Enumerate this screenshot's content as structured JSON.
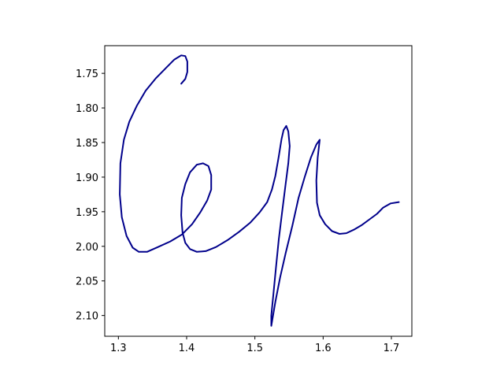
{
  "chart_data": {
    "type": "line",
    "title": "",
    "xlabel": "",
    "ylabel": "",
    "xlim": [
      1.28,
      1.73
    ],
    "ylim": [
      2.13,
      1.71
    ],
    "y_inverted": true,
    "grid": false,
    "legend": "none",
    "xticks": [
      1.3,
      1.4,
      1.5,
      1.6,
      1.7
    ],
    "xtick_labels": [
      "1.3",
      "1.4",
      "1.5",
      "1.6",
      "1.7"
    ],
    "yticks": [
      1.75,
      1.8,
      1.85,
      1.9,
      1.95,
      2.0,
      2.05,
      2.1
    ],
    "ytick_labels": [
      "1.75",
      "1.80",
      "1.85",
      "1.90",
      "1.95",
      "2.00",
      "2.05",
      "2.10"
    ],
    "series": [
      {
        "color": "#00008b",
        "x": [
          1.392,
          1.398,
          1.401,
          1.401,
          1.398,
          1.392,
          1.382,
          1.37,
          1.355,
          1.34,
          1.327,
          1.316,
          1.308,
          1.303,
          1.302,
          1.305,
          1.312,
          1.321,
          1.33,
          1.342,
          1.358,
          1.376,
          1.393,
          1.408,
          1.42,
          1.43,
          1.436,
          1.436,
          1.432,
          1.424,
          1.415,
          1.405,
          1.398,
          1.393,
          1.392,
          1.394,
          1.398,
          1.405,
          1.415,
          1.428,
          1.443,
          1.46,
          1.477,
          1.493,
          1.507,
          1.518,
          1.525,
          1.53,
          1.535,
          1.539,
          1.542,
          1.546,
          1.549,
          1.551,
          1.549,
          1.545,
          1.54,
          1.535,
          1.531,
          1.527,
          1.524,
          1.524,
          1.53,
          1.537,
          1.545,
          1.555,
          1.564,
          1.573,
          1.582,
          1.59,
          1.595,
          1.592,
          1.59,
          1.591,
          1.595,
          1.603,
          1.613,
          1.624,
          1.634,
          1.645,
          1.657,
          1.668,
          1.679,
          1.688,
          1.699,
          1.711
        ],
        "y": [
          1.765,
          1.758,
          1.748,
          1.733,
          1.725,
          1.724,
          1.73,
          1.742,
          1.757,
          1.775,
          1.797,
          1.82,
          1.846,
          1.88,
          1.925,
          1.958,
          1.985,
          2.002,
          2.008,
          2.008,
          2.001,
          1.993,
          1.983,
          1.968,
          1.951,
          1.934,
          1.918,
          1.897,
          1.884,
          1.88,
          1.882,
          1.893,
          1.91,
          1.93,
          1.955,
          1.98,
          1.995,
          2.004,
          2.008,
          2.007,
          2.001,
          1.991,
          1.979,
          1.966,
          1.951,
          1.936,
          1.918,
          1.898,
          1.87,
          1.845,
          1.832,
          1.826,
          1.834,
          1.855,
          1.88,
          1.91,
          1.95,
          1.99,
          2.03,
          2.07,
          2.1,
          2.115,
          2.08,
          2.045,
          2.01,
          1.97,
          1.93,
          1.9,
          1.872,
          1.853,
          1.846,
          1.872,
          1.905,
          1.937,
          1.955,
          1.968,
          1.978,
          1.982,
          1.981,
          1.976,
          1.969,
          1.961,
          1.953,
          1.944,
          1.938,
          1.936
        ]
      }
    ]
  }
}
